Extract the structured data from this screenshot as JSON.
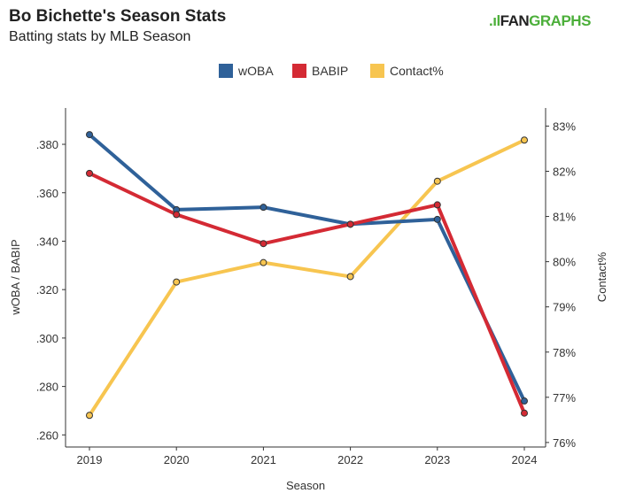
{
  "header": {
    "title": "Bo Bichette's Season Stats",
    "subtitle": "Batting stats by MLB Season",
    "logo": "FANGRAPHS"
  },
  "chart_data": {
    "type": "line",
    "title": "Bo Bichette's Season Stats",
    "subtitle": "Batting stats by MLB Season",
    "xlabel": "Season",
    "ylabel": "wOBA / BABIP",
    "y2label": "Contact%",
    "categories": [
      "2019",
      "2020",
      "2021",
      "2022",
      "2023",
      "2024"
    ],
    "ylim": [
      0.255,
      0.395
    ],
    "y2lim": [
      75.9,
      83.4
    ],
    "yticks": [
      0.26,
      0.28,
      0.3,
      0.32,
      0.34,
      0.36,
      0.38
    ],
    "ytick_labels": [
      ".260",
      ".280",
      ".300",
      ".320",
      ".340",
      ".360",
      ".380"
    ],
    "y2ticks": [
      76,
      77,
      78,
      79,
      80,
      81,
      82,
      83
    ],
    "y2tick_labels": [
      "76%",
      "77%",
      "78%",
      "79%",
      "80%",
      "81%",
      "82%",
      "83%"
    ],
    "legend_position": "top-center",
    "series": [
      {
        "name": "wOBA",
        "axis": "left",
        "color": "#2f6199",
        "values": [
          0.384,
          0.353,
          0.354,
          0.347,
          0.349,
          0.274
        ]
      },
      {
        "name": "BABIP",
        "axis": "left",
        "color": "#d42a34",
        "values": [
          0.368,
          0.351,
          0.339,
          0.347,
          0.355,
          0.269
        ]
      },
      {
        "name": "Contact%",
        "axis": "right",
        "color": "#f7c550",
        "values": [
          76.6,
          79.55,
          79.98,
          79.67,
          81.78,
          82.69
        ]
      }
    ]
  }
}
